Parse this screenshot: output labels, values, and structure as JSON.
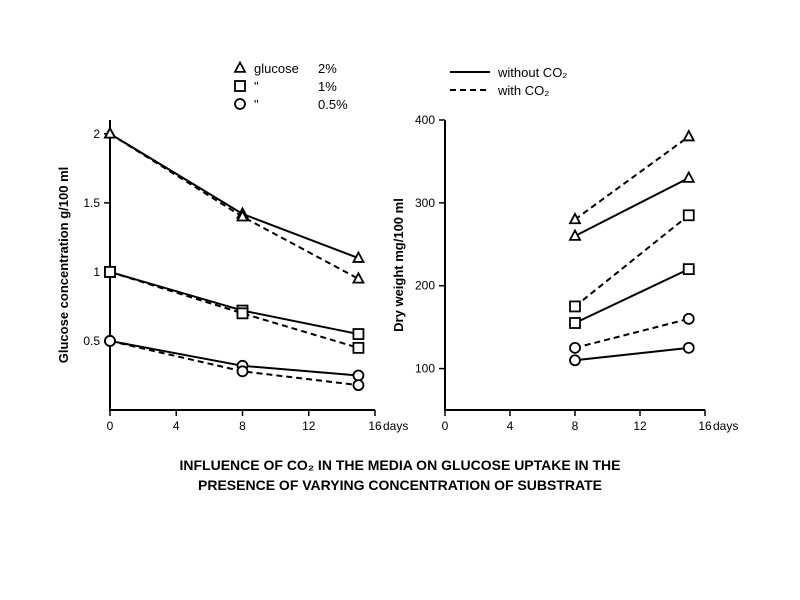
{
  "figure": {
    "caption_line1": "INFLUENCE OF CO₂ IN THE MEDIA ON GLUCOSE UPTAKE IN THE",
    "caption_line2": "PRESENCE OF VARYING CONCENTRATION OF SUBSTRATE",
    "caption_fontsize": 14,
    "background_color": "#ffffff",
    "stroke_color": "#000000",
    "line_width": 2,
    "marker_size": 5,
    "marker_stroke": 1.8,
    "dash_pattern": "6,4"
  },
  "legend_markers": {
    "title": "glucose",
    "items": [
      {
        "marker": "triangle",
        "label1": "glucose",
        "label2": "2%"
      },
      {
        "marker": "square",
        "label1": "\"",
        "label2": "1%"
      },
      {
        "marker": "circle",
        "label1": "\"",
        "label2": "0.5%"
      }
    ]
  },
  "legend_lines": {
    "items": [
      {
        "style": "solid",
        "label": "without CO₂"
      },
      {
        "style": "dashed",
        "label": "with CO₂"
      }
    ]
  },
  "left_chart": {
    "type": "line",
    "ylabel": "Glucose concentration g/100 ml",
    "xlabel_suffix": "days",
    "xlim": [
      0,
      16
    ],
    "xtick_step": 4,
    "ylim": [
      0,
      2.1
    ],
    "yticks": [
      0.5,
      1,
      1.5,
      2
    ],
    "series": [
      {
        "marker": "triangle",
        "style": "solid",
        "points": [
          [
            0,
            2.0
          ],
          [
            8,
            1.42
          ],
          [
            15,
            1.1
          ]
        ]
      },
      {
        "marker": "triangle",
        "style": "dashed",
        "points": [
          [
            0,
            2.0
          ],
          [
            8,
            1.4
          ],
          [
            15,
            0.95
          ]
        ]
      },
      {
        "marker": "square",
        "style": "solid",
        "points": [
          [
            0,
            1.0
          ],
          [
            8,
            0.72
          ],
          [
            15,
            0.55
          ]
        ]
      },
      {
        "marker": "square",
        "style": "dashed",
        "points": [
          [
            0,
            1.0
          ],
          [
            8,
            0.7
          ],
          [
            15,
            0.45
          ]
        ]
      },
      {
        "marker": "circle",
        "style": "solid",
        "points": [
          [
            0,
            0.5
          ],
          [
            8,
            0.32
          ],
          [
            15,
            0.25
          ]
        ]
      },
      {
        "marker": "circle",
        "style": "dashed",
        "points": [
          [
            0,
            0.5
          ],
          [
            8,
            0.28
          ],
          [
            15,
            0.18
          ]
        ]
      }
    ]
  },
  "right_chart": {
    "type": "line",
    "ylabel": "Dry weight mg/100 ml",
    "xlabel_suffix": "days",
    "xlim": [
      0,
      16
    ],
    "xtick_step": 4,
    "ylim": [
      50,
      400
    ],
    "yticks": [
      100,
      200,
      300,
      400
    ],
    "series": [
      {
        "marker": "triangle",
        "style": "dashed",
        "points": [
          [
            8,
            280
          ],
          [
            15,
            380
          ]
        ]
      },
      {
        "marker": "triangle",
        "style": "solid",
        "points": [
          [
            8,
            260
          ],
          [
            15,
            330
          ]
        ]
      },
      {
        "marker": "square",
        "style": "dashed",
        "points": [
          [
            8,
            175
          ],
          [
            15,
            285
          ]
        ]
      },
      {
        "marker": "square",
        "style": "solid",
        "points": [
          [
            8,
            155
          ],
          [
            15,
            220
          ]
        ]
      },
      {
        "marker": "circle",
        "style": "dashed",
        "points": [
          [
            8,
            125
          ],
          [
            15,
            160
          ]
        ]
      },
      {
        "marker": "circle",
        "style": "solid",
        "points": [
          [
            8,
            110
          ],
          [
            15,
            125
          ]
        ]
      }
    ]
  }
}
